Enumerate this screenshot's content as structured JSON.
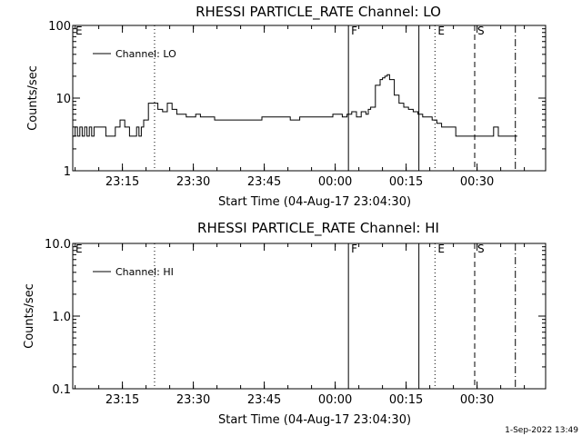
{
  "chart_data": [
    {
      "type": "line",
      "title": "RHESSI PARTICLE_RATE Channel: LO",
      "xlabel": "Start Time (04-Aug-17 23:04:30)",
      "ylabel": "Counts/sec",
      "x_unit": "minutes after 23:04:30",
      "xlim": [
        0,
        100
      ],
      "ylim": [
        1,
        100
      ],
      "yscale": "log",
      "x_ticks": [
        {
          "label": "23:15",
          "value": 10.5
        },
        {
          "label": "23:30",
          "value": 25.5
        },
        {
          "label": "23:45",
          "value": 40.5
        },
        {
          "label": "00:00",
          "value": 55.5
        },
        {
          "label": "00:15",
          "value": 70.5
        },
        {
          "label": "00:30",
          "value": 85.5
        }
      ],
      "y_ticks": [
        {
          "label": "1",
          "value": 1
        },
        {
          "label": "10",
          "value": 10
        },
        {
          "label": "100",
          "value": 100
        }
      ],
      "legend": {
        "label": "Channel: LO",
        "position": "top-left"
      },
      "markers": [
        {
          "label": "E",
          "x": 0,
          "style": "none"
        },
        {
          "label": "",
          "x": 17.3,
          "style": "dotted"
        },
        {
          "label": "F",
          "x": 58.3,
          "style": "solid"
        },
        {
          "label": "",
          "x": 73.2,
          "style": "solid"
        },
        {
          "label": "E",
          "x": 76.6,
          "style": "dotted"
        },
        {
          "label": "S",
          "x": 85.0,
          "style": "dashed"
        },
        {
          "label": "",
          "x": 93.6,
          "style": "dashdot"
        }
      ],
      "series": [
        {
          "name": "Channel: LO",
          "x": [
            0,
            0.5,
            1,
            1.5,
            2,
            2.5,
            3,
            3.5,
            4,
            4.5,
            5,
            5.5,
            6,
            7,
            8,
            9,
            10,
            11,
            11.5,
            12,
            12.5,
            13,
            13.5,
            14,
            14.5,
            15,
            16,
            17,
            18,
            19,
            20,
            21,
            22,
            23,
            24,
            25,
            26,
            27,
            28,
            29,
            30,
            32,
            34,
            36,
            38,
            40,
            42,
            44,
            46,
            48,
            50,
            52,
            54,
            55,
            56,
            57,
            58,
            59,
            60,
            61,
            62,
            62.5,
            63,
            64,
            65,
            65.5,
            66,
            66.5,
            67,
            68,
            69,
            70,
            71,
            72,
            73,
            74,
            75,
            76,
            77,
            78,
            79,
            80,
            81,
            82,
            83,
            84,
            85,
            86,
            87,
            88,
            89,
            90,
            91,
            92,
            93,
            94
          ],
          "values": [
            3,
            4,
            3,
            4,
            3,
            4,
            3,
            4,
            3,
            4,
            4,
            4,
            4,
            3,
            3,
            4,
            5,
            4,
            4,
            3,
            3,
            3,
            4,
            3,
            4,
            5,
            8.5,
            8.5,
            7,
            6.5,
            8.5,
            7,
            6,
            6,
            5.5,
            5.5,
            6,
            5.5,
            5.5,
            5.5,
            5,
            5,
            5,
            5,
            5,
            5.5,
            5.5,
            5.5,
            5,
            5.5,
            5.5,
            5.5,
            5.5,
            6,
            6,
            5.5,
            6,
            6.5,
            5.5,
            6.5,
            6,
            7,
            7.5,
            15,
            18,
            19,
            20,
            21,
            18,
            11,
            8.5,
            7.5,
            7,
            6.5,
            6,
            5.5,
            5.5,
            5,
            4.5,
            4,
            4,
            4,
            3,
            3,
            3,
            3,
            3,
            3,
            3,
            3,
            4,
            3,
            3,
            3,
            3,
            3
          ]
        }
      ]
    },
    {
      "type": "line",
      "title": "RHESSI PARTICLE_RATE Channel: HI",
      "xlabel": "Start Time (04-Aug-17 23:04:30)",
      "ylabel": "Counts/sec",
      "x_unit": "minutes after 23:04:30",
      "xlim": [
        0,
        100
      ],
      "ylim": [
        0.1,
        10
      ],
      "yscale": "log",
      "x_ticks": [
        {
          "label": "23:15",
          "value": 10.5
        },
        {
          "label": "23:30",
          "value": 25.5
        },
        {
          "label": "23:45",
          "value": 40.5
        },
        {
          "label": "00:00",
          "value": 55.5
        },
        {
          "label": "00:15",
          "value": 70.5
        },
        {
          "label": "00:30",
          "value": 85.5
        }
      ],
      "y_ticks": [
        {
          "label": "0.1",
          "value": 0.1
        },
        {
          "label": "1.0",
          "value": 1
        },
        {
          "label": "10.0",
          "value": 10
        }
      ],
      "legend": {
        "label": "Channel: HI",
        "position": "top-left"
      },
      "markers": [
        {
          "label": "E",
          "x": 0,
          "style": "none"
        },
        {
          "label": "",
          "x": 17.3,
          "style": "dotted"
        },
        {
          "label": "F",
          "x": 58.3,
          "style": "solid"
        },
        {
          "label": "",
          "x": 73.2,
          "style": "solid"
        },
        {
          "label": "E",
          "x": 76.6,
          "style": "dotted"
        },
        {
          "label": "S",
          "x": 85.0,
          "style": "dashed"
        },
        {
          "label": "",
          "x": 93.6,
          "style": "dashdot"
        }
      ],
      "series": [
        {
          "name": "Channel: HI",
          "x": [],
          "values": []
        }
      ]
    }
  ],
  "footer": {
    "date_stamp": "1-Sep-2022 13:49"
  }
}
